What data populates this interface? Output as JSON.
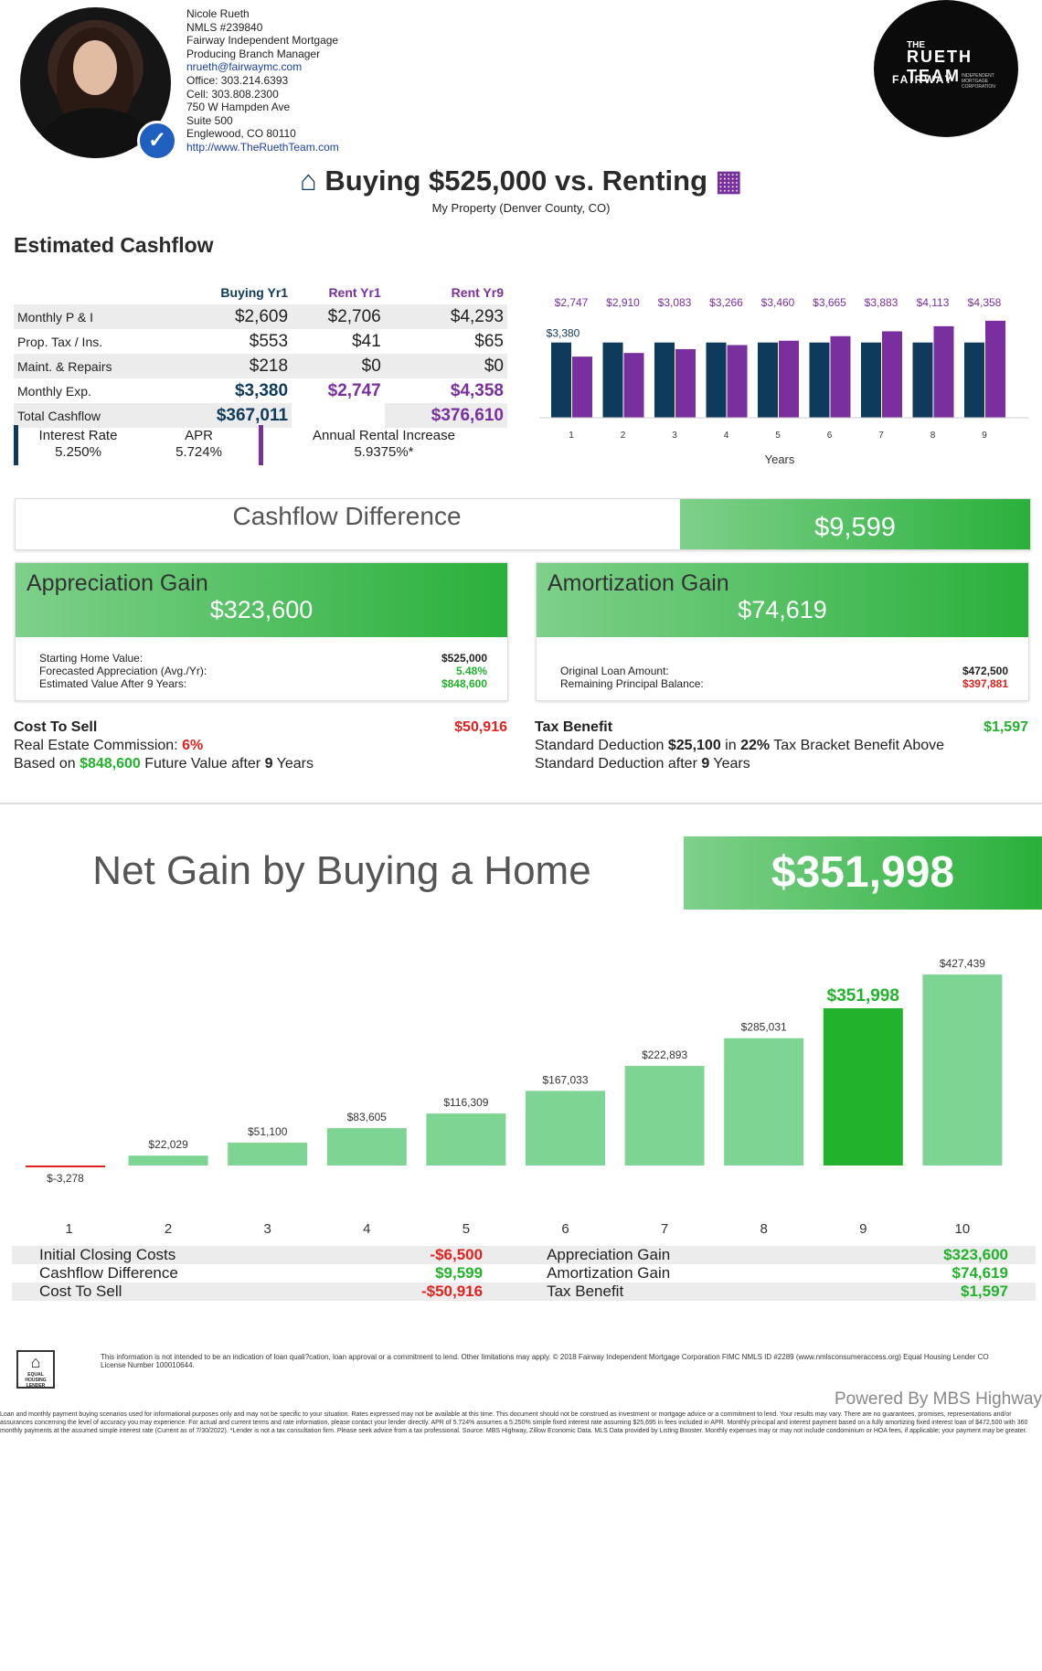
{
  "agent": {
    "name": "Nicole Rueth",
    "nmls": "NMLS #239840",
    "company": "Fairway Independent Mortgage",
    "role": "Producing Branch Manager",
    "email": "nrueth@fairwaymc.com",
    "office": "Office: 303.214.6393",
    "cell": "Cell: 303.808.2300",
    "address1": "750 W Hampden Ave",
    "address2": "Suite 500",
    "city": "Englewood,  CO  80110",
    "website": "http://www.TheRuethTeam.com"
  },
  "logo": {
    "line1": "THE",
    "line2": "RUETH TEAM",
    "line3": "FAIRWAY",
    "line4": "INDEPENDENT MORTGAGE CORPORATION"
  },
  "headline": {
    "text": "Buying $525,000 vs. Renting",
    "subtitle": "My Property (Denver County, CO)"
  },
  "cashflow": {
    "title": "Estimated Cashflow",
    "columns": [
      "Buying Yr1",
      "Rent Yr1",
      "Rent Yr9"
    ],
    "rows": [
      {
        "label": "Monthly P & I",
        "values": [
          "$2,609",
          "$2,706",
          "$4,293"
        ]
      },
      {
        "label": "Prop. Tax / Ins.",
        "values": [
          "$553",
          "$41",
          "$65"
        ]
      },
      {
        "label": "Maint. & Repairs",
        "values": [
          "$218",
          "$0",
          "$0"
        ]
      },
      {
        "label": "Monthly Exp.",
        "values": [
          "$3,380",
          "$2,747",
          "$4,358"
        ]
      },
      {
        "label": "Total Cashflow",
        "values": [
          "$367,011",
          "",
          "$376,610"
        ]
      }
    ],
    "interest_label": "Interest Rate",
    "interest_value": "5.250%",
    "apr_label": "APR",
    "apr_value": "5.724%",
    "rent_increase_label": "Annual Rental Increase",
    "rent_increase_value": "5.9375%*"
  },
  "chart_data": [
    {
      "type": "bar",
      "categories": [
        "1",
        "2",
        "3",
        "4",
        "5",
        "6",
        "7",
        "8",
        "9"
      ],
      "series": [
        {
          "values": [
            3380,
            3380,
            3380,
            3380,
            3380,
            3380,
            3380,
            3380,
            3380
          ],
          "color": "#0e3a5c"
        },
        {
          "values": [
            2747,
            2910,
            3083,
            3266,
            3460,
            3665,
            3883,
            4113,
            4358
          ],
          "color": "#7a2f9e"
        }
      ],
      "labels": [
        "$2,747",
        "$2,910",
        "$3,083",
        "$3,266",
        "$3,460",
        "$3,665",
        "$3,883",
        "$4,113",
        "$4,358"
      ],
      "buy_label": "$3,380",
      "xlabel": "Years",
      "ylim": [
        0,
        4600
      ]
    },
    {
      "type": "bar",
      "categories": [
        "1",
        "2",
        "3",
        "4",
        "5",
        "6",
        "7",
        "8",
        "9",
        "10"
      ],
      "values": [
        -3278,
        22029,
        51100,
        83605,
        116309,
        167033,
        222893,
        285031,
        351998,
        427439
      ],
      "labels": [
        "$-3,278",
        "$22,029",
        "$51,100",
        "$83,605",
        "$116,309",
        "$167,033",
        "$222,893",
        "$285,031",
        "$351,998",
        "$427,439"
      ],
      "highlight_index": 8,
      "ylim": [
        0,
        440000
      ]
    }
  ],
  "cashflow_difference": {
    "label": "Cashflow Difference",
    "value": "$9,599"
  },
  "appreciation": {
    "title": "Appreciation Gain",
    "value": "$323,600",
    "rows": [
      {
        "label": "Starting Home Value:",
        "value": "$525,000"
      },
      {
        "label": "Forecasted Appreciation (Avg./Yr):",
        "value": "5.48%"
      },
      {
        "label": "Estimated Value After 9 Years:",
        "value": "$848,600"
      }
    ]
  },
  "amortization": {
    "title": "Amortization Gain",
    "value": "$74,619",
    "rows": [
      {
        "label": "Original Loan Amount:",
        "value": "$472,500"
      },
      {
        "label": "Remaining Principal Balance:",
        "value": "$397,881"
      }
    ]
  },
  "cost_to_sell": {
    "title": "Cost To Sell",
    "value": "$50,916",
    "line1_pre": "Real Estate Commission: ",
    "line1_val": "6%",
    "line2_pre": "Based on ",
    "line2_val": "$848,600",
    "line2_post": " Future Value after ",
    "line2_years": "9",
    "line2_end": " Years"
  },
  "tax_benefit": {
    "title": "Tax Benefit",
    "value": "$1,597",
    "l1a": "Standard Deduction ",
    "l1b": "$25,100",
    "l1c": " in ",
    "l1d": "22%",
    "l1e": " Tax Bracket Benefit Above",
    "l2a": "Standard Deduction after ",
    "l2b": "9",
    "l2c": " Years"
  },
  "net_gain": {
    "title": "Net Gain by Buying a Home",
    "value": "$351,998"
  },
  "summary": {
    "rows": [
      {
        "l1": "Initial Closing Costs",
        "v1": "-$6,500",
        "l2": "Appreciation Gain",
        "v2": "$323,600"
      },
      {
        "l1": "Cashflow Difference",
        "v1": "$9,599",
        "l2": "Amortization Gain",
        "v2": "$74,619"
      },
      {
        "l1": "Cost To Sell",
        "v1": "-$50,916",
        "l2": "Tax Benefit",
        "v2": "$1,597"
      }
    ]
  },
  "footer": {
    "eho": "EQUAL HOUSING LENDER",
    "disclaimer1": "This information is not intended to be an indication of loan quali?cation, loan approval or a commitment to lend. Other limitations may apply. © 2018 Fairway Independent Mortgage Corporation FIMC NMLS ID #2289 (www.nmlsconsumeraccess.org) Equal Housing Lender CO License Number 100010644.",
    "powered": "Powered By MBS Highway",
    "disclaimer2": "Loan and monthly payment buying scenarios used for informational purposes only and may not be specific to your situation. Rates expressed may not be available at this time. This document should not be construed as investment or mortgage advice or a commitment to lend. Your results may vary. There are no guarantees, promises, representations and/or assurances concerning the level of accuracy you may experience. For actual and current terms and rate information, please contact your lender directly. APR of 5.724% assumes a 5.250% simple fixed interest rate assuming $25,695 in fees included in APR. Monthly principal and interest payment based on a fully amortizing fixed interest loan of $472,500 with 360 monthly payments at the assumed simple interest rate (Current as of 7/30/2022). *Lender is not a tax consultation firm. Please seek advice from a tax professional. Source: MBS Highway, Zillow Economic Data. MLS Data provided by Listing Booster. Monthly expenses may or may not include condominium or HOA fees, if applicable; your payment may be greater."
  }
}
